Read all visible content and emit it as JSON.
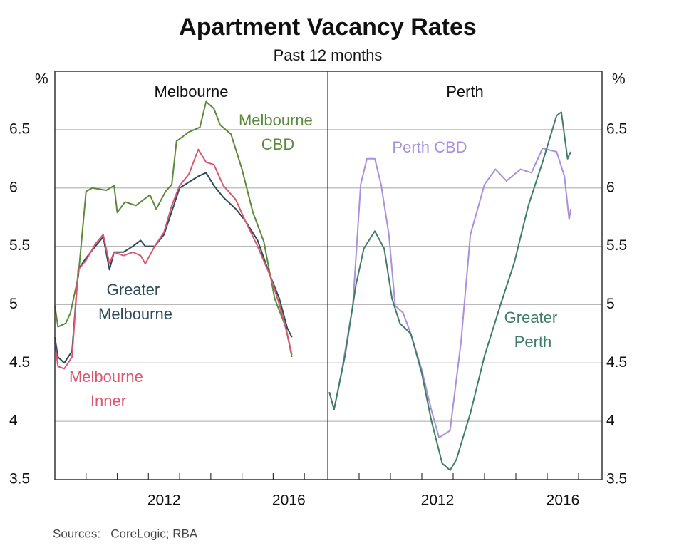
{
  "title": "Apartment Vacancy Rates",
  "subtitle": "Past 12 months",
  "source": "Sources:   CoreLogic; RBA",
  "chart_data": [
    {
      "type": "line",
      "title": "Melbourne",
      "ylabel": "%",
      "y_axis_side": "left",
      "xlim": [
        2009,
        2017.75
      ],
      "ylim": [
        3.5,
        7.0
      ],
      "yticks": [
        3.5,
        4.0,
        4.5,
        5.0,
        5.5,
        6.0,
        6.5
      ],
      "xticks": [
        {
          "value": 2012.5,
          "label": "2012"
        },
        {
          "value": 2016.5,
          "label": "2016"
        }
      ],
      "xminor_ticks": [
        2010,
        2011,
        2012,
        2013,
        2014,
        2015,
        2016,
        2017
      ],
      "grid": true,
      "series": [
        {
          "name": "Melbourne CBD",
          "color": "#5a8a3a",
          "x": [
            2009.0,
            2009.1,
            2009.35,
            2009.5,
            2009.75,
            2010.0,
            2010.2,
            2010.65,
            2010.9,
            2011.0,
            2011.25,
            2011.6,
            2011.8,
            2012.05,
            2012.25,
            2012.55,
            2012.75,
            2012.9,
            2013.3,
            2013.65,
            2013.85,
            2014.1,
            2014.3,
            2014.65,
            2015.0,
            2015.35,
            2015.7,
            2016.05,
            2016.4,
            2016.6
          ],
          "values": [
            4.99,
            4.81,
            4.84,
            4.93,
            5.24,
            5.97,
            6.0,
            5.98,
            6.02,
            5.79,
            5.88,
            5.85,
            5.89,
            5.94,
            5.82,
            5.97,
            6.03,
            6.4,
            6.48,
            6.52,
            6.74,
            6.68,
            6.54,
            6.46,
            6.16,
            5.79,
            5.54,
            5.05,
            4.81,
            4.55
          ]
        },
        {
          "name": "Greater Melbourne",
          "color": "#2c4b5e",
          "x": [
            2009.0,
            2009.1,
            2009.3,
            2009.55,
            2009.75,
            2010.0,
            2010.3,
            2010.55,
            2010.75,
            2010.9,
            2011.2,
            2011.5,
            2011.75,
            2011.9,
            2012.2,
            2012.5,
            2012.75,
            2013.0,
            2013.3,
            2013.6,
            2013.85,
            2014.1,
            2014.4,
            2014.8,
            2015.1,
            2015.5,
            2015.9,
            2016.2,
            2016.45,
            2016.6
          ],
          "values": [
            4.72,
            4.55,
            4.5,
            4.6,
            5.3,
            5.4,
            5.5,
            5.58,
            5.3,
            5.45,
            5.45,
            5.5,
            5.55,
            5.5,
            5.5,
            5.6,
            5.8,
            6.0,
            6.05,
            6.1,
            6.13,
            6.02,
            5.92,
            5.82,
            5.72,
            5.55,
            5.25,
            5.05,
            4.8,
            4.72
          ]
        },
        {
          "name": "Melbourne Inner",
          "color": "#d95870",
          "x": [
            2009.0,
            2009.1,
            2009.3,
            2009.55,
            2009.75,
            2010.0,
            2010.3,
            2010.55,
            2010.75,
            2010.9,
            2011.2,
            2011.5,
            2011.75,
            2011.9,
            2012.2,
            2012.5,
            2012.75,
            2013.0,
            2013.3,
            2013.6,
            2013.85,
            2014.1,
            2014.4,
            2014.8,
            2015.1,
            2015.5,
            2015.9,
            2016.2,
            2016.45,
            2016.6
          ],
          "values": [
            4.68,
            4.47,
            4.45,
            4.55,
            5.3,
            5.38,
            5.52,
            5.6,
            5.35,
            5.45,
            5.42,
            5.45,
            5.42,
            5.35,
            5.5,
            5.62,
            5.85,
            6.02,
            6.12,
            6.33,
            6.22,
            6.2,
            6.02,
            5.9,
            5.72,
            5.5,
            5.25,
            5.0,
            4.75,
            4.57
          ]
        }
      ]
    },
    {
      "type": "line",
      "title": "Perth",
      "ylabel": "%",
      "y_axis_side": "right",
      "xlim": [
        2009,
        2017.75
      ],
      "ylim": [
        3.5,
        7.0
      ],
      "yticks": [
        3.5,
        4.0,
        4.5,
        5.0,
        5.5,
        6.0,
        6.5
      ],
      "xticks": [
        {
          "value": 2012.5,
          "label": "2012"
        },
        {
          "value": 2016.5,
          "label": "2016"
        }
      ],
      "xminor_ticks": [
        2010,
        2011,
        2012,
        2013,
        2014,
        2015,
        2016,
        2017
      ],
      "grid": true,
      "series": [
        {
          "name": "Perth CBD",
          "color": "#a890dc",
          "x": [
            2009.05,
            2009.2,
            2009.45,
            2009.8,
            2010.05,
            2010.25,
            2010.5,
            2010.7,
            2010.95,
            2011.15,
            2011.4,
            2011.65,
            2012.0,
            2012.3,
            2012.55,
            2012.9,
            2013.25,
            2013.55,
            2014.0,
            2014.35,
            2014.7,
            2015.15,
            2015.5,
            2015.85,
            2016.3,
            2016.55,
            2016.7,
            2016.75
          ],
          "values": [
            4.25,
            4.1,
            4.44,
            4.99,
            6.03,
            6.25,
            6.25,
            6.03,
            5.6,
            4.99,
            4.93,
            4.75,
            4.44,
            4.1,
            3.86,
            3.92,
            4.68,
            5.6,
            6.03,
            6.16,
            6.06,
            6.16,
            6.13,
            6.34,
            6.31,
            6.1,
            5.73,
            5.82
          ]
        },
        {
          "name": "Greater Perth",
          "color": "#3f7d66",
          "x": [
            2009.05,
            2009.2,
            2009.55,
            2009.9,
            2010.15,
            2010.5,
            2010.8,
            2011.05,
            2011.3,
            2011.65,
            2012.0,
            2012.3,
            2012.65,
            2012.9,
            2013.1,
            2013.55,
            2014.0,
            2014.5,
            2014.95,
            2015.4,
            2015.85,
            2016.3,
            2016.45,
            2016.65,
            2016.75
          ],
          "values": [
            4.25,
            4.1,
            4.56,
            5.17,
            5.48,
            5.63,
            5.48,
            5.05,
            4.84,
            4.75,
            4.41,
            4.01,
            3.64,
            3.58,
            3.67,
            4.07,
            4.56,
            4.99,
            5.36,
            5.85,
            6.22,
            6.62,
            6.65,
            6.25,
            6.31
          ]
        }
      ]
    }
  ]
}
